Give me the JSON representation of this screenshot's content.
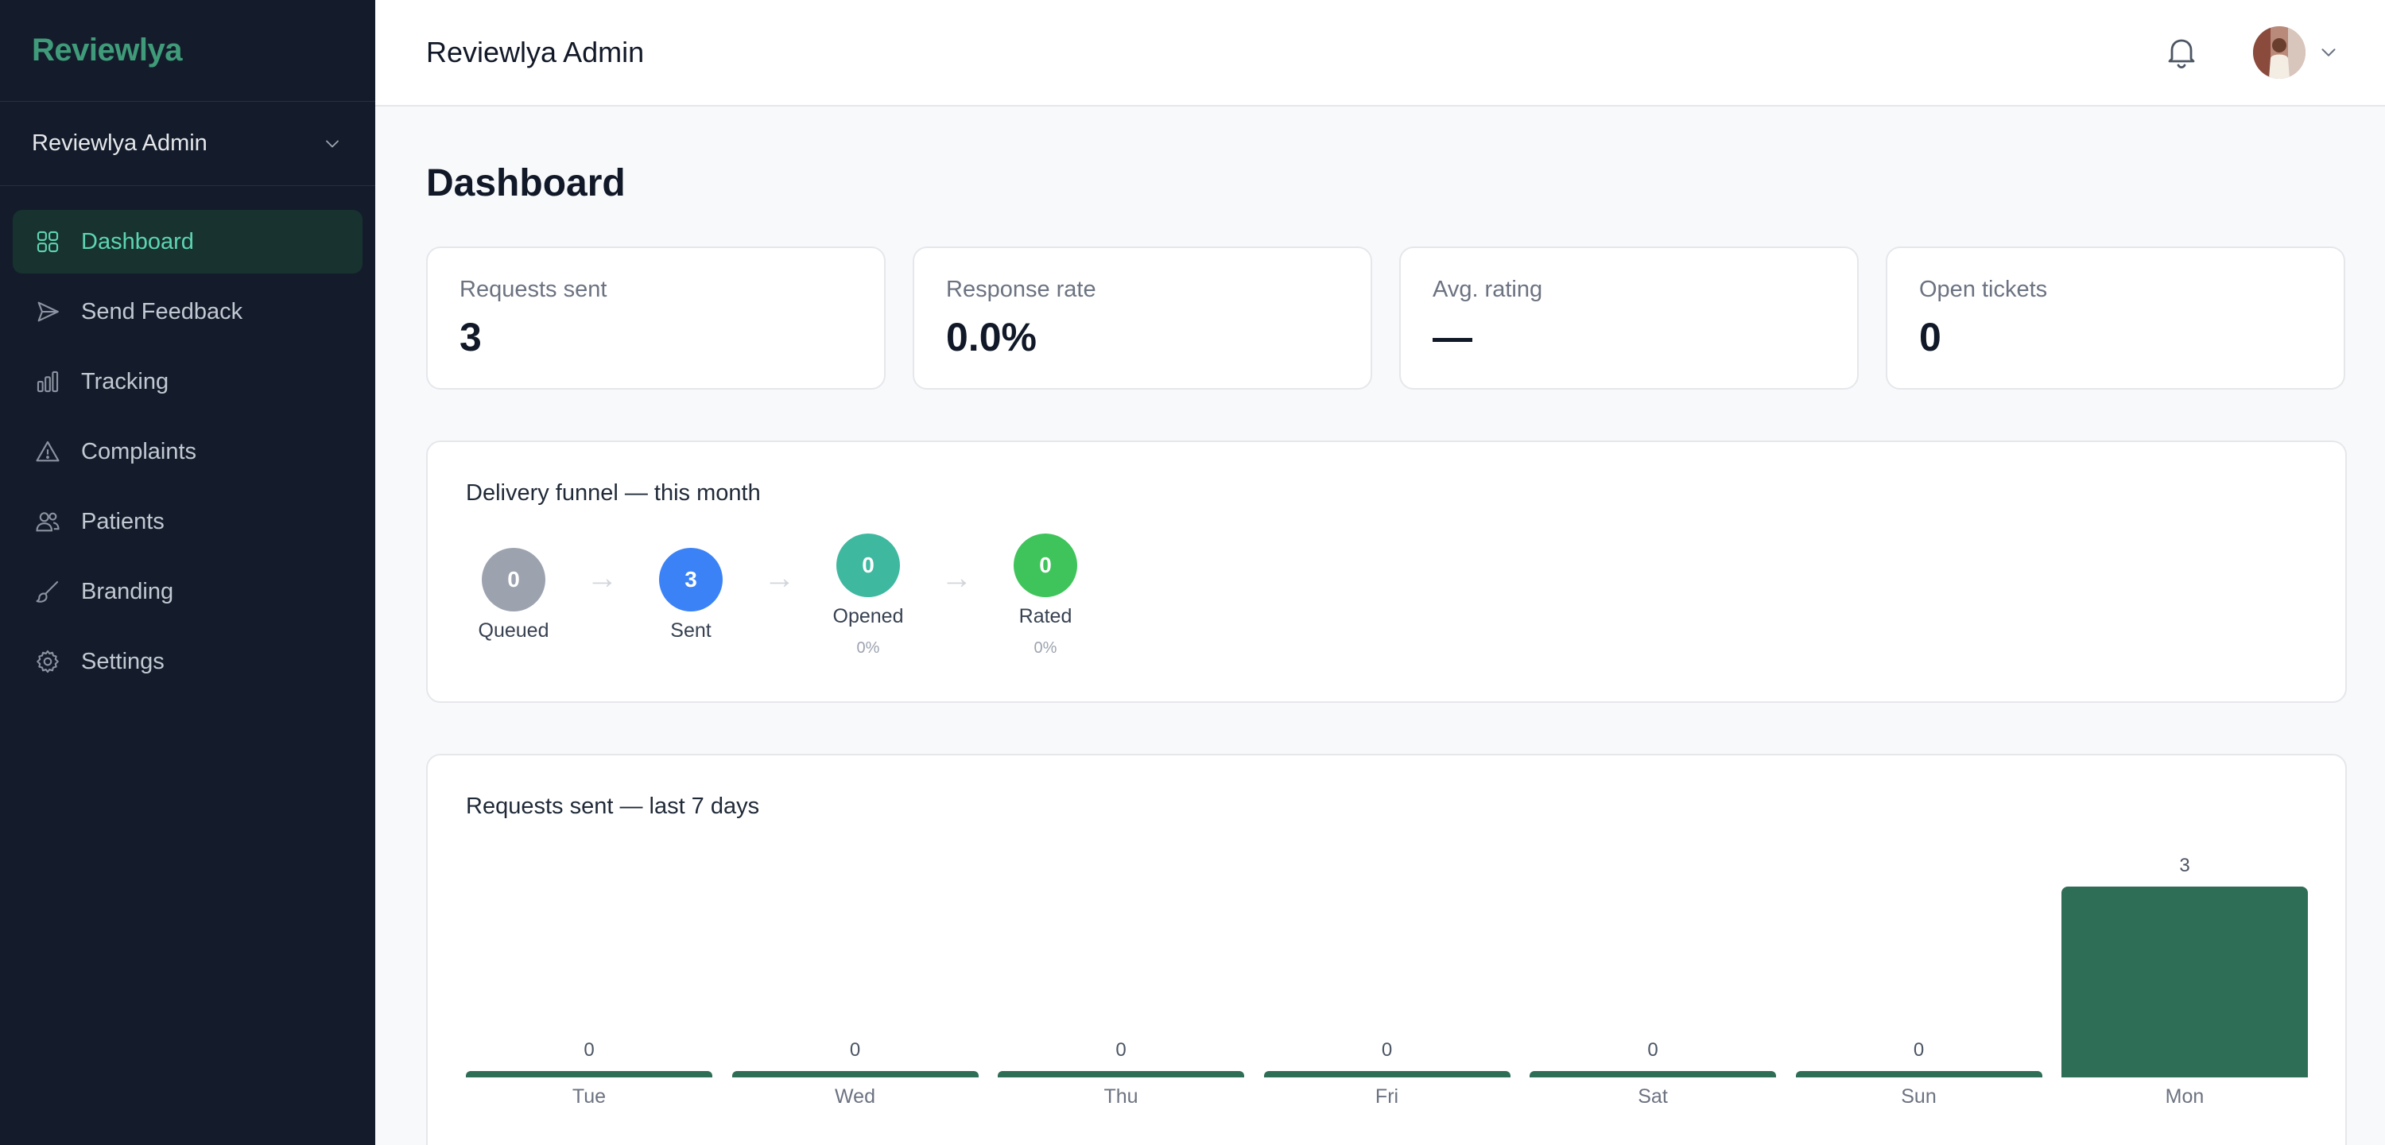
{
  "brand": "Reviewlya",
  "org_switcher": {
    "label": "Reviewlya Admin"
  },
  "nav": [
    {
      "label": "Dashboard",
      "icon": "grid-icon",
      "active": true
    },
    {
      "label": "Send Feedback",
      "icon": "send-icon",
      "active": false
    },
    {
      "label": "Tracking",
      "icon": "bar-chart-icon",
      "active": false
    },
    {
      "label": "Complaints",
      "icon": "warning-icon",
      "active": false
    },
    {
      "label": "Patients",
      "icon": "users-icon",
      "active": false
    },
    {
      "label": "Branding",
      "icon": "brush-icon",
      "active": false
    },
    {
      "label": "Settings",
      "icon": "gear-icon",
      "active": false
    }
  ],
  "header": {
    "title": "Reviewlya Admin"
  },
  "page_title": "Dashboard",
  "stats": [
    {
      "label": "Requests sent",
      "value": "3"
    },
    {
      "label": "Response rate",
      "value": "0.0%"
    },
    {
      "label": "Avg. rating",
      "value": "—"
    },
    {
      "label": "Open tickets",
      "value": "0"
    }
  ],
  "funnel": {
    "title": "Delivery funnel — this month",
    "stages": [
      {
        "value": "0",
        "name": "Queued",
        "pct": "",
        "color": "#9ca3af"
      },
      {
        "value": "3",
        "name": "Sent",
        "pct": "",
        "color": "#3b82f6"
      },
      {
        "value": "0",
        "name": "Opened",
        "pct": "0%",
        "color": "#3fb8a0"
      },
      {
        "value": "0",
        "name": "Rated",
        "pct": "0%",
        "color": "#3ec45a"
      }
    ],
    "arrow": "→"
  },
  "colors": {
    "accent": "#3f9b79",
    "bar": "#2e6e57",
    "sidebar_bg": "#141c2b"
  },
  "chart_data": {
    "type": "bar",
    "title": "Requests sent — last 7 days",
    "categories": [
      "Tue",
      "Wed",
      "Thu",
      "Fri",
      "Sat",
      "Sun",
      "Mon"
    ],
    "values": [
      0,
      0,
      0,
      0,
      0,
      0,
      3
    ],
    "xlabel": "",
    "ylabel": "",
    "ylim": [
      0,
      3
    ],
    "grid": false
  }
}
